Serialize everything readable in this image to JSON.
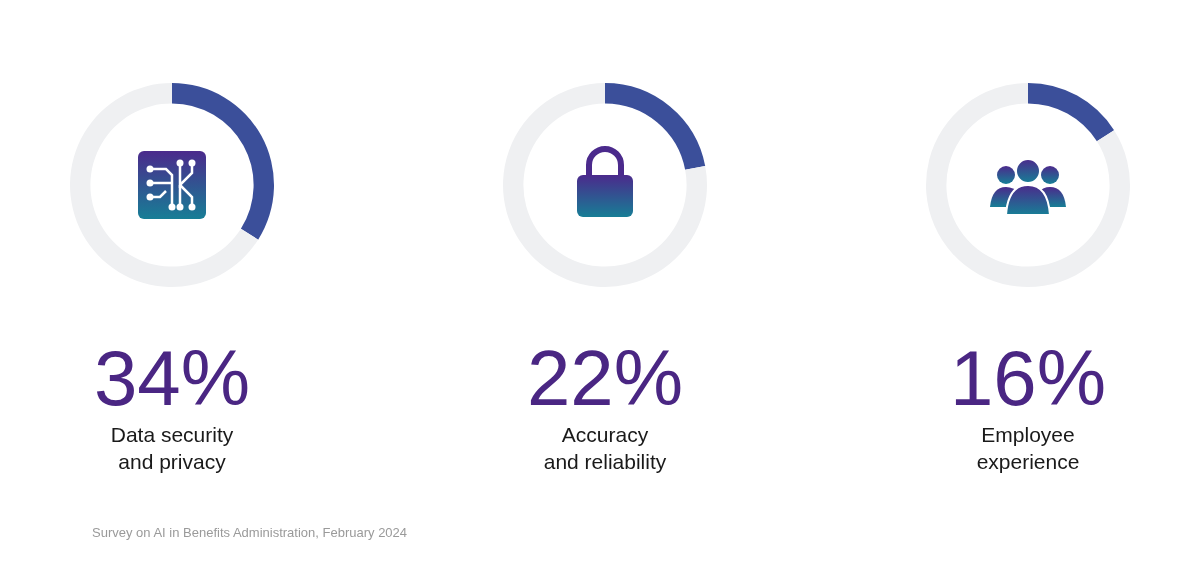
{
  "chart_data": [
    {
      "type": "donut",
      "title": "34%",
      "subtitle": "Data security and privacy",
      "categories": [
        null,
        null
      ],
      "values": [
        34,
        66
      ],
      "colors": [
        "#3b4f9a",
        "#eff0f2"
      ],
      "legend": false,
      "annotations": [
        "Survey on AI in Benefits Administration, February 2024"
      ]
    },
    {
      "type": "donut",
      "title": "22%",
      "subtitle": "Accuracy and reliability",
      "categories": [
        null,
        null
      ],
      "values": [
        22,
        78
      ],
      "colors": [
        "#3b4f9a",
        "#eff0f2"
      ],
      "legend": false
    },
    {
      "type": "donut",
      "title": "16%",
      "subtitle": "Employee experience",
      "categories": [
        null,
        null
      ],
      "values": [
        16,
        84
      ],
      "colors": [
        "#3b4f9a",
        "#eff0f2"
      ],
      "legend": false
    }
  ]
}
